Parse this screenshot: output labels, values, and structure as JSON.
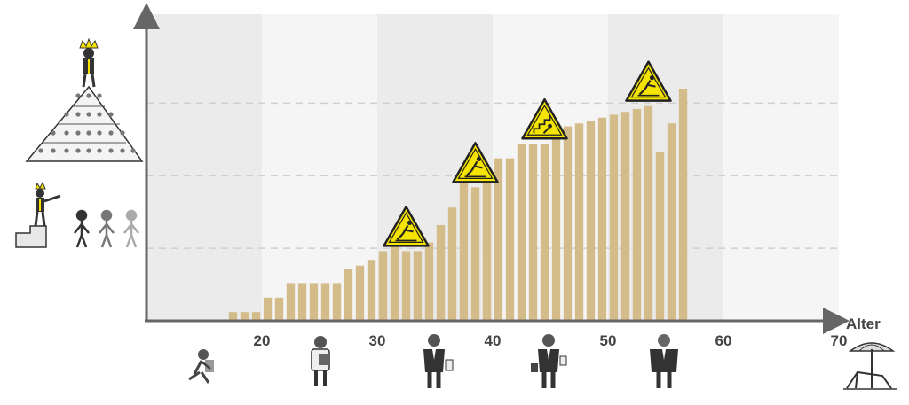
{
  "chart_data": {
    "type": "bar",
    "xlabel": "Alter",
    "ylabel": "",
    "title": "",
    "xlim": [
      10,
      70
    ],
    "ylim": [
      0,
      100
    ],
    "x_ticks": [
      20,
      30,
      40,
      50,
      60,
      70
    ],
    "x": [
      17.5,
      18.5,
      19.5,
      20.5,
      21.5,
      22.5,
      23.5,
      24.5,
      25.5,
      26.5,
      27.5,
      28.5,
      29.5,
      30.5,
      31.5,
      32.5,
      33.5,
      34.5,
      35.5,
      36.5,
      37.5,
      38.5,
      39.5,
      40.5,
      41.5,
      42.5,
      43.5,
      44.5,
      45.5,
      46.5,
      47.5,
      48.5,
      49.5,
      50.5,
      51.5,
      52.5,
      53.5,
      54.5,
      55.5,
      56.5
    ],
    "values": [
      3,
      3,
      3,
      8,
      8,
      13,
      13,
      13,
      13,
      13,
      18,
      19,
      21,
      24,
      26,
      24,
      24,
      27,
      33,
      39,
      49,
      46,
      52,
      56,
      56,
      61,
      61,
      61,
      66,
      67,
      68,
      69,
      70,
      71,
      72,
      73,
      74,
      58,
      68,
      80
    ],
    "gridlines_y": [
      25,
      50,
      75
    ],
    "grid": true,
    "bar_color": "#d4bc8a",
    "band_colors": [
      "#ebebeb",
      "#f5f5f5"
    ],
    "warning_markers": [
      {
        "x": 32.5,
        "icon": "falling-person-warning-icon"
      },
      {
        "x": 38.5,
        "icon": "falling-person-warning-icon"
      },
      {
        "x": 44.5,
        "icon": "falling-down-stairs-warning-icon"
      },
      {
        "x": 53.5,
        "icon": "falling-person-warning-icon"
      }
    ],
    "warning_color": "#f5e400",
    "side_icons": [
      "pyramid-hierarchy-icon",
      "leader-on-podium-icon"
    ],
    "age_icons": [
      "student-running-icon",
      "young-professional-icon",
      "businessman-icon",
      "businessman-icon",
      "senior-businessman-icon",
      "beach-chair-umbrella-icon"
    ]
  }
}
